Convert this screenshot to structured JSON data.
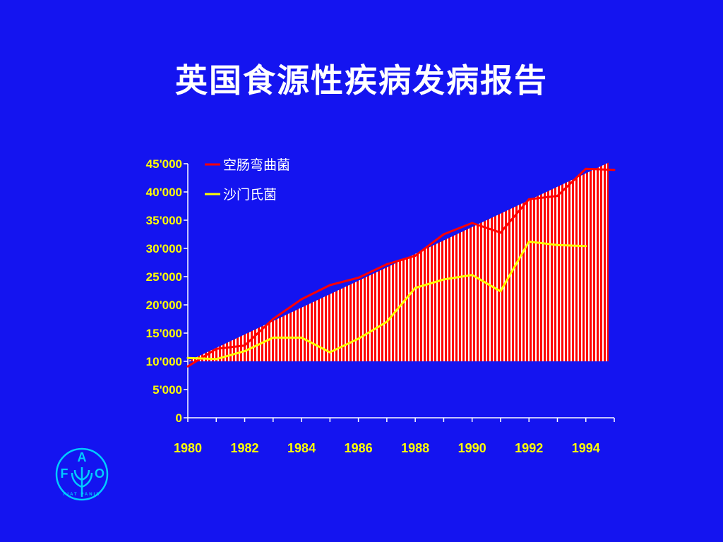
{
  "title": "英国食源性疾病发病报告",
  "colors": {
    "background": "#1414f0",
    "area_fill": "#ff0000",
    "area_stripe": "#ffffff",
    "series_1": "#ff0000",
    "series_2": "#ffff00",
    "axis": "#ffffff",
    "tick_text": "#ffff00",
    "logo": "#00ccff"
  },
  "logo": {
    "icon": "fao-logo-icon",
    "letters": [
      "F",
      "A",
      "O"
    ],
    "motto": "FIAT PANIS"
  },
  "chart_data": {
    "type": "line",
    "title": "",
    "xlabel": "",
    "ylabel": "",
    "xlim": [
      1980,
      1995
    ],
    "ylim": [
      0,
      45000
    ],
    "grid": false,
    "legend_position": "top-left",
    "x_ticks": [
      1980,
      1981,
      1982,
      1983,
      1984,
      1985,
      1986,
      1987,
      1988,
      1989,
      1990,
      1991,
      1992,
      1993,
      1994,
      1995
    ],
    "x_tick_labels": [
      "1980",
      "1982",
      "1984",
      "1986",
      "1988",
      "1990",
      "1992",
      "1994"
    ],
    "x_tick_label_values": [
      1980,
      1982,
      1984,
      1986,
      1988,
      1990,
      1992,
      1994
    ],
    "y_ticks": [
      0,
      5000,
      10000,
      15000,
      20000,
      25000,
      30000,
      35000,
      40000,
      45000
    ],
    "y_tick_labels": [
      "0",
      "5'000",
      "10'000",
      "15'000",
      "20'000",
      "25'000",
      "30'000",
      "35'000",
      "40'000",
      "45'000"
    ],
    "area": {
      "description": "red striped trend area",
      "x": [
        1980,
        1994.8
      ],
      "y_base": 10000,
      "y_top": [
        10000,
        45200
      ]
    },
    "series": [
      {
        "name": "空肠弯曲菌",
        "color": "#ff0000",
        "x": [
          1980,
          1981,
          1982,
          1983,
          1984,
          1985,
          1986,
          1987,
          1988,
          1989,
          1990,
          1991,
          1992,
          1993,
          1994,
          1995
        ],
        "values": [
          9100,
          12200,
          12800,
          17500,
          21000,
          23500,
          24800,
          27200,
          28700,
          32500,
          34500,
          32800,
          38700,
          39300,
          44100,
          43900
        ]
      },
      {
        "name": "沙门氏菌",
        "color": "#ffff00",
        "x": [
          1980,
          1981,
          1982,
          1983,
          1984,
          1985,
          1986,
          1987,
          1988,
          1989,
          1990,
          1991,
          1992,
          1993,
          1994
        ],
        "values": [
          10600,
          10400,
          11800,
          14200,
          14200,
          11600,
          14000,
          17000,
          23000,
          24500,
          25300,
          22400,
          31200,
          30600,
          30400
        ]
      }
    ]
  }
}
